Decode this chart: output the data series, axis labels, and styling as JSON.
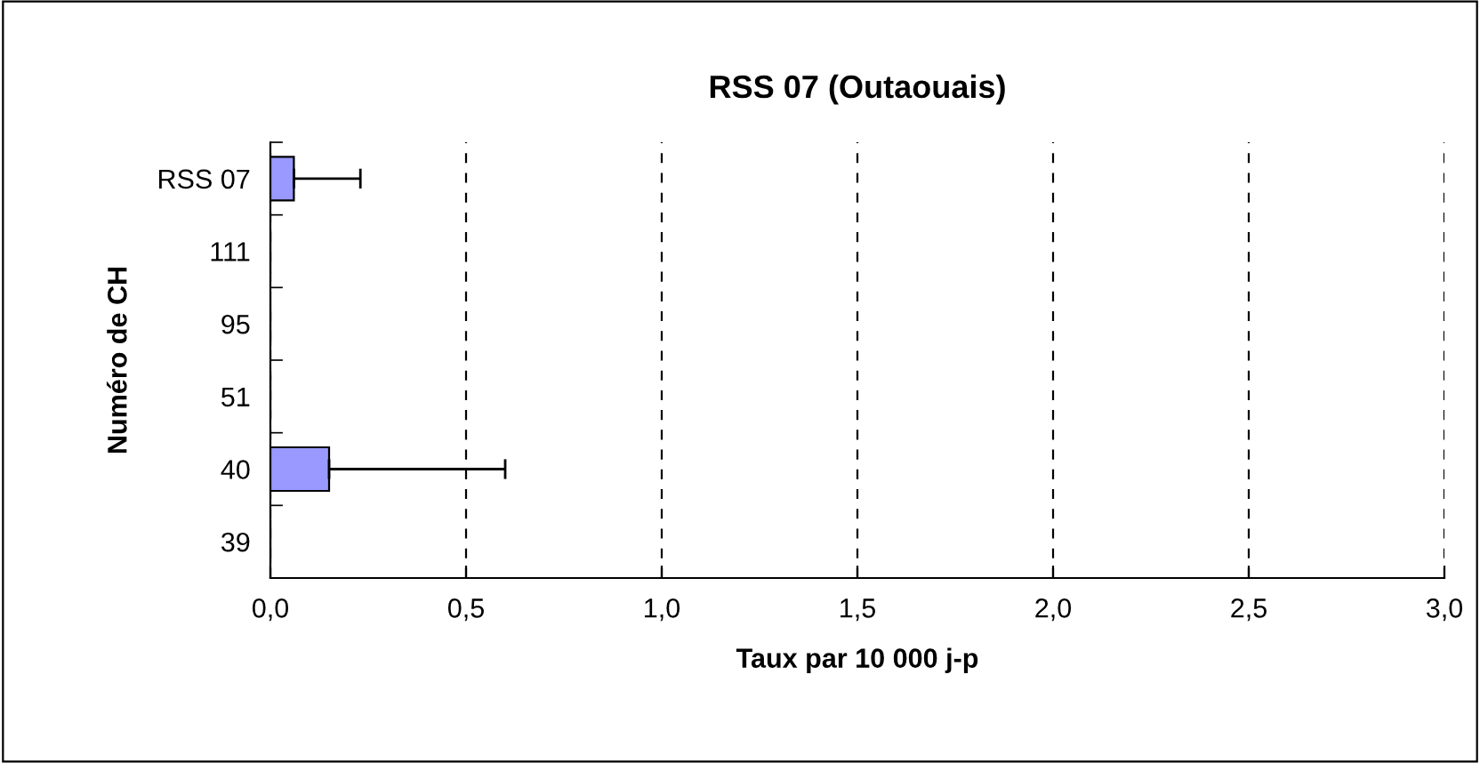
{
  "chart_data": {
    "type": "bar",
    "orientation": "horizontal",
    "title": "RSS 07 (Outaouais)",
    "xlabel": "Taux par 10 000 j-p",
    "ylabel": "Numéro de CH",
    "categories": [
      "RSS 07",
      "111",
      "95",
      "51",
      "40",
      "39"
    ],
    "values": [
      0.06,
      0,
      0,
      0,
      0.15,
      0
    ],
    "errors": [
      [
        0.06,
        0.23
      ],
      null,
      null,
      null,
      [
        0.15,
        0.6
      ],
      null
    ],
    "color": "#9999ff",
    "xlim": [
      0,
      3
    ],
    "xticks": [
      {
        "value": 0,
        "label": "0,0"
      },
      {
        "value": 0.5,
        "label": "0,5"
      },
      {
        "value": 1,
        "label": "1,0"
      },
      {
        "value": 1.5,
        "label": "1,5"
      },
      {
        "value": 2,
        "label": "2,0"
      },
      {
        "value": 2.5,
        "label": "2,5"
      },
      {
        "value": 3,
        "label": "3,0"
      }
    ],
    "grid": "x"
  }
}
